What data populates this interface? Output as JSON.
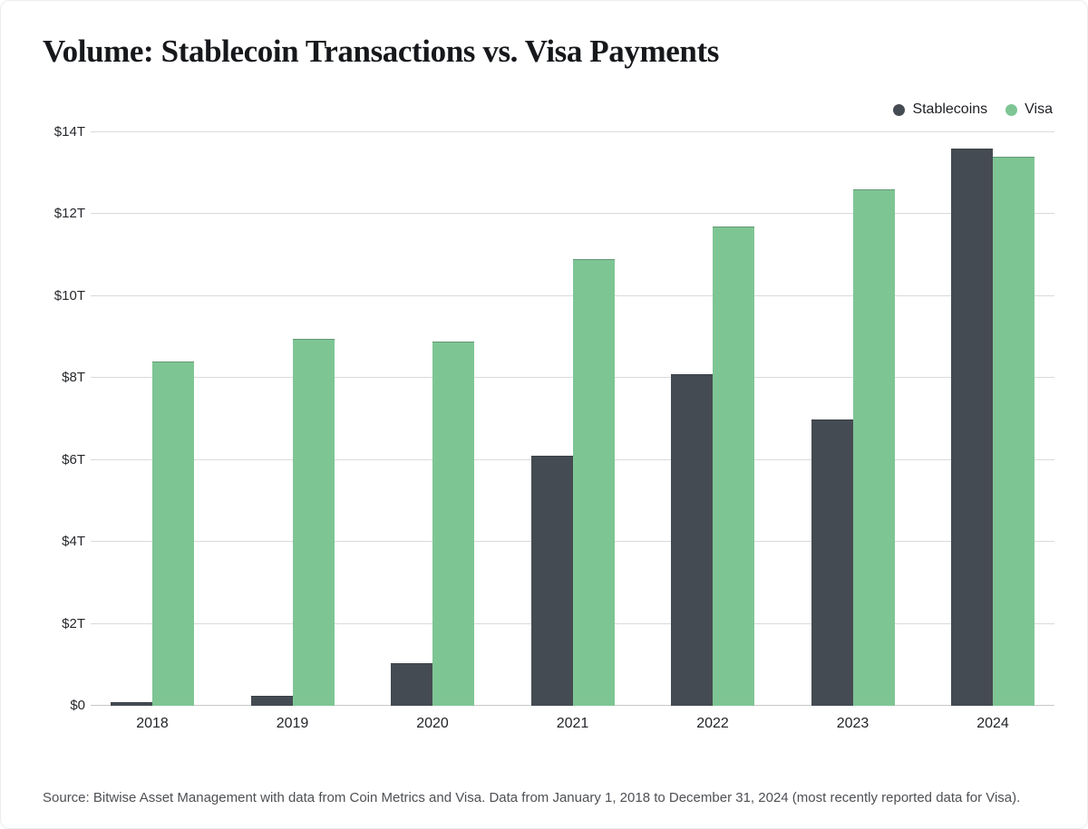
{
  "page": {
    "title": "Volume: Stablecoin Transactions vs. Visa Payments",
    "source_note": "Source: Bitwise Asset Management with data from Coin Metrics and Visa. Data from January 1, 2018 to December 31, 2024 (most recently reported data for Visa)."
  },
  "colors": {
    "stablecoins": "#454b52",
    "visa": "#7ec594",
    "gridline": "#dadada",
    "baseline": "#c8c8c8",
    "title_text": "#16181b",
    "axis_text": "#26282c",
    "source_text": "#4e5054",
    "background": "#ffffff"
  },
  "legend": {
    "items": [
      {
        "label": "Stablecoins",
        "color": "#454b52"
      },
      {
        "label": "Visa",
        "color": "#7ec594"
      }
    ]
  },
  "chart_data": {
    "type": "bar",
    "title": "Volume: Stablecoin Transactions vs. Visa Payments",
    "categories": [
      "2018",
      "2019",
      "2020",
      "2021",
      "2022",
      "2023",
      "2024"
    ],
    "series": [
      {
        "name": "Stablecoins",
        "color": "#454b52",
        "values": [
          0.1,
          0.25,
          1.05,
          6.1,
          8.1,
          7.0,
          13.6
        ]
      },
      {
        "name": "Visa",
        "color": "#7ec594",
        "values": [
          8.4,
          8.95,
          8.9,
          10.9,
          11.7,
          12.6,
          13.4
        ]
      }
    ],
    "unit": "trillions of USD",
    "xlabel": "",
    "ylabel": "",
    "ylim": [
      0,
      14
    ],
    "ytick_step": 2,
    "ytick_labels": [
      "$0",
      "$2T",
      "$4T",
      "$6T",
      "$8T",
      "$10T",
      "$12T",
      "$14T"
    ],
    "grid": true,
    "legend_position": "top-right"
  }
}
